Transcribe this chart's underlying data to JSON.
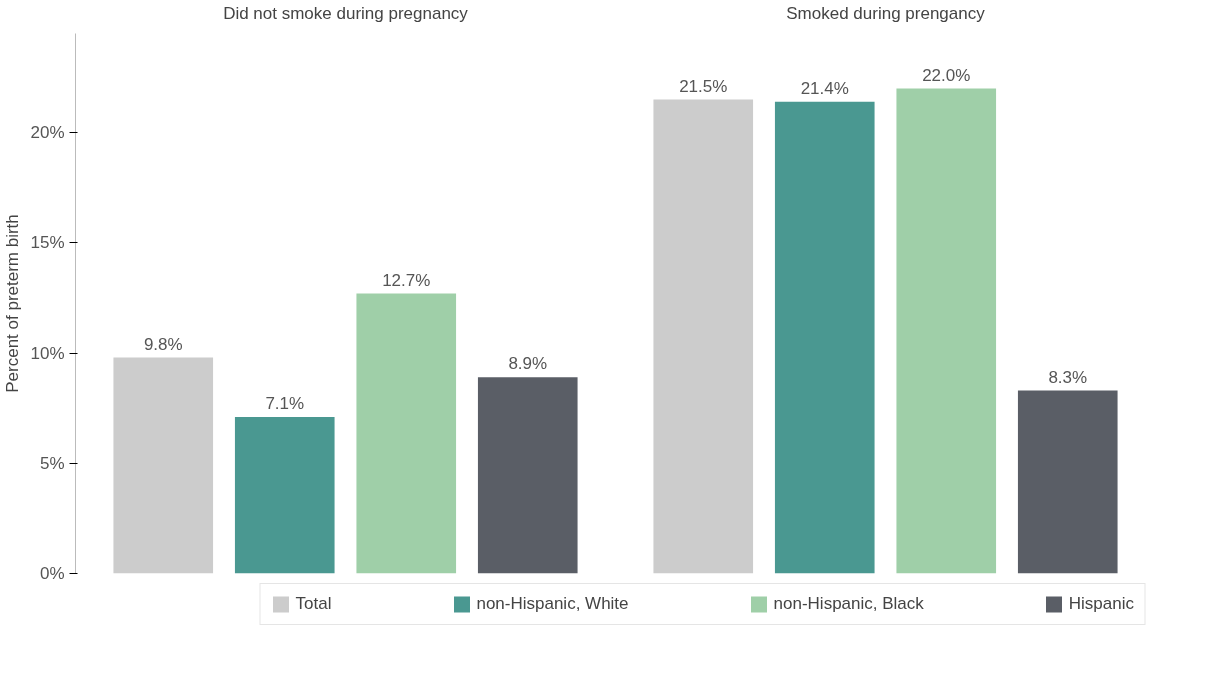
{
  "chart_data": {
    "type": "bar",
    "ylabel": "Percent of preterm birth",
    "categories": [
      "Did not smoke during pregnancy",
      "Smoked during prengancy"
    ],
    "series": [
      {
        "name": "Total",
        "color": "#cccccc",
        "values": [
          9.8,
          21.5
        ],
        "value_labels": [
          "9.8%",
          "21.5%"
        ]
      },
      {
        "name": "non-Hispanic, White",
        "color": "#4a9891",
        "values": [
          7.1,
          21.4
        ],
        "value_labels": [
          "7.1%",
          "21.4%"
        ]
      },
      {
        "name": "non-Hispanic, Black",
        "color": "#9fcfa8",
        "values": [
          12.7,
          22.0
        ],
        "value_labels": [
          "12.7%",
          "22.0%"
        ]
      },
      {
        "name": "Hispanic",
        "color": "#5a5e66",
        "values": [
          8.9,
          8.3
        ],
        "value_labels": [
          "8.9%",
          "8.3%"
        ]
      }
    ],
    "ylim": [
      0,
      24.5
    ],
    "yticks": [
      {
        "value": 0,
        "label": "0%"
      },
      {
        "value": 5,
        "label": "5%"
      },
      {
        "value": 10,
        "label": "10%"
      },
      {
        "value": 15,
        "label": "15%"
      },
      {
        "value": 20,
        "label": "20%"
      }
    ],
    "grid": false,
    "legend": "bottom"
  }
}
